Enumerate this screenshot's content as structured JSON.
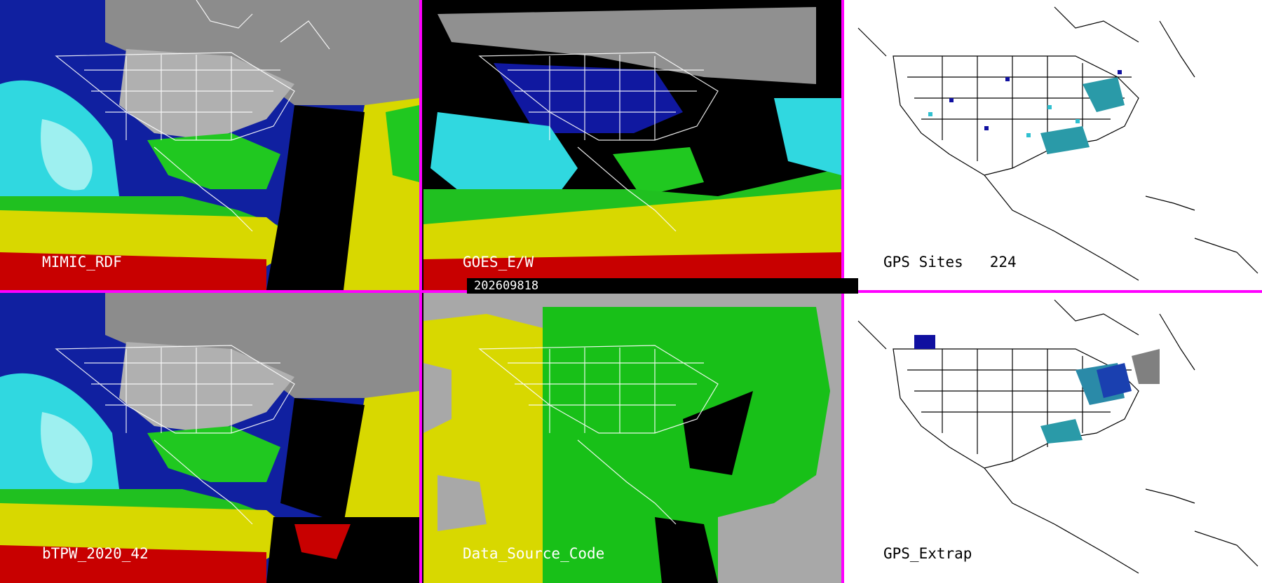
{
  "panels": {
    "top_left": {
      "label": "MIMIC_RDF"
    },
    "top_middle": {
      "label": "GOES_E/W"
    },
    "top_right": {
      "label": "GPS Sites   224"
    },
    "bottom_left": {
      "label": "bTPW_2020_42"
    },
    "bottom_middle": {
      "label": "Data_Source_Code"
    },
    "bottom_right": {
      "label": "GPS_Extrap"
    }
  },
  "timestamp": "202609818",
  "colors": {
    "divider": "#ff00ff",
    "water_vapor_scale": [
      "#a0a0a0",
      "#1010a0",
      "#18b8e8",
      "#40d8e0",
      "#18c818",
      "#d8d800",
      "#c80000"
    ],
    "source_code": [
      "#a8a8a8",
      "#d8d800",
      "#18c018",
      "#000000"
    ]
  }
}
